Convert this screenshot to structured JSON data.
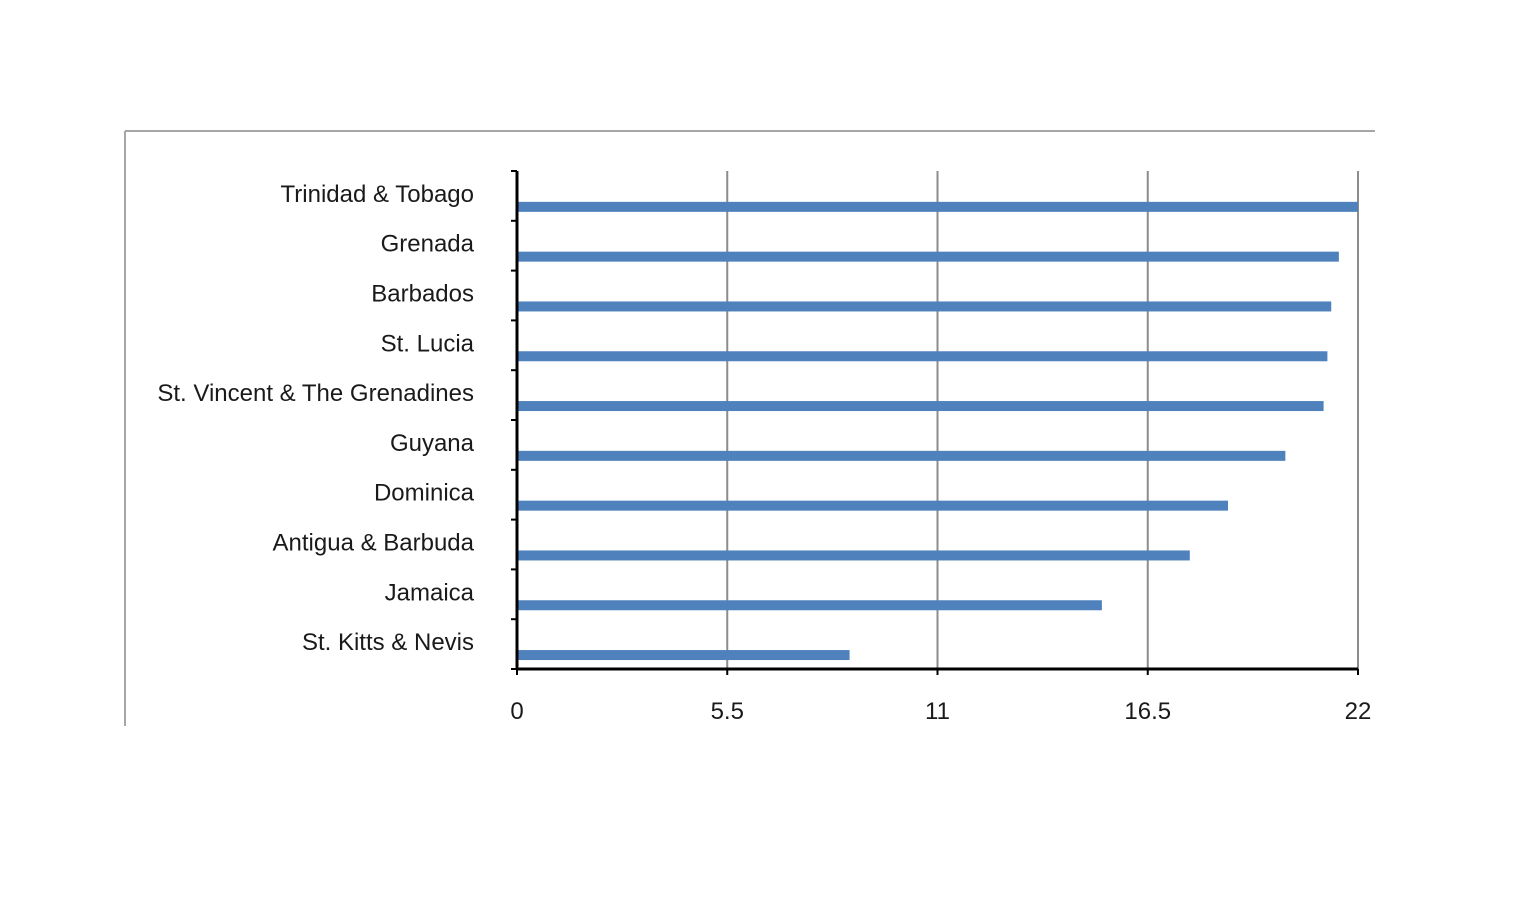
{
  "chart_data": {
    "type": "bar",
    "orientation": "horizontal",
    "title": "",
    "xlabel": "",
    "ylabel": "",
    "categories": [
      "Trinidad & Tobago",
      "Grenada",
      "Barbados",
      "St. Lucia",
      "St. Vincent & The Grenadines",
      "Guyana",
      "Dominica",
      "Antigua & Barbuda",
      "Jamaica",
      "St. Kitts & Nevis"
    ],
    "values": [
      22.0,
      21.5,
      21.3,
      21.2,
      21.1,
      20.1,
      18.6,
      17.6,
      15.3,
      8.7
    ],
    "xlim": [
      0,
      22
    ],
    "xticks": [
      "0",
      "5.5",
      "11",
      "16.5",
      "22"
    ],
    "grid": "vertical",
    "legend": "none",
    "bar_color": "#4f81bd",
    "grid_color": "#8c8c8c",
    "axis_color": "#000000",
    "frame_color": "#a6a6a6"
  }
}
